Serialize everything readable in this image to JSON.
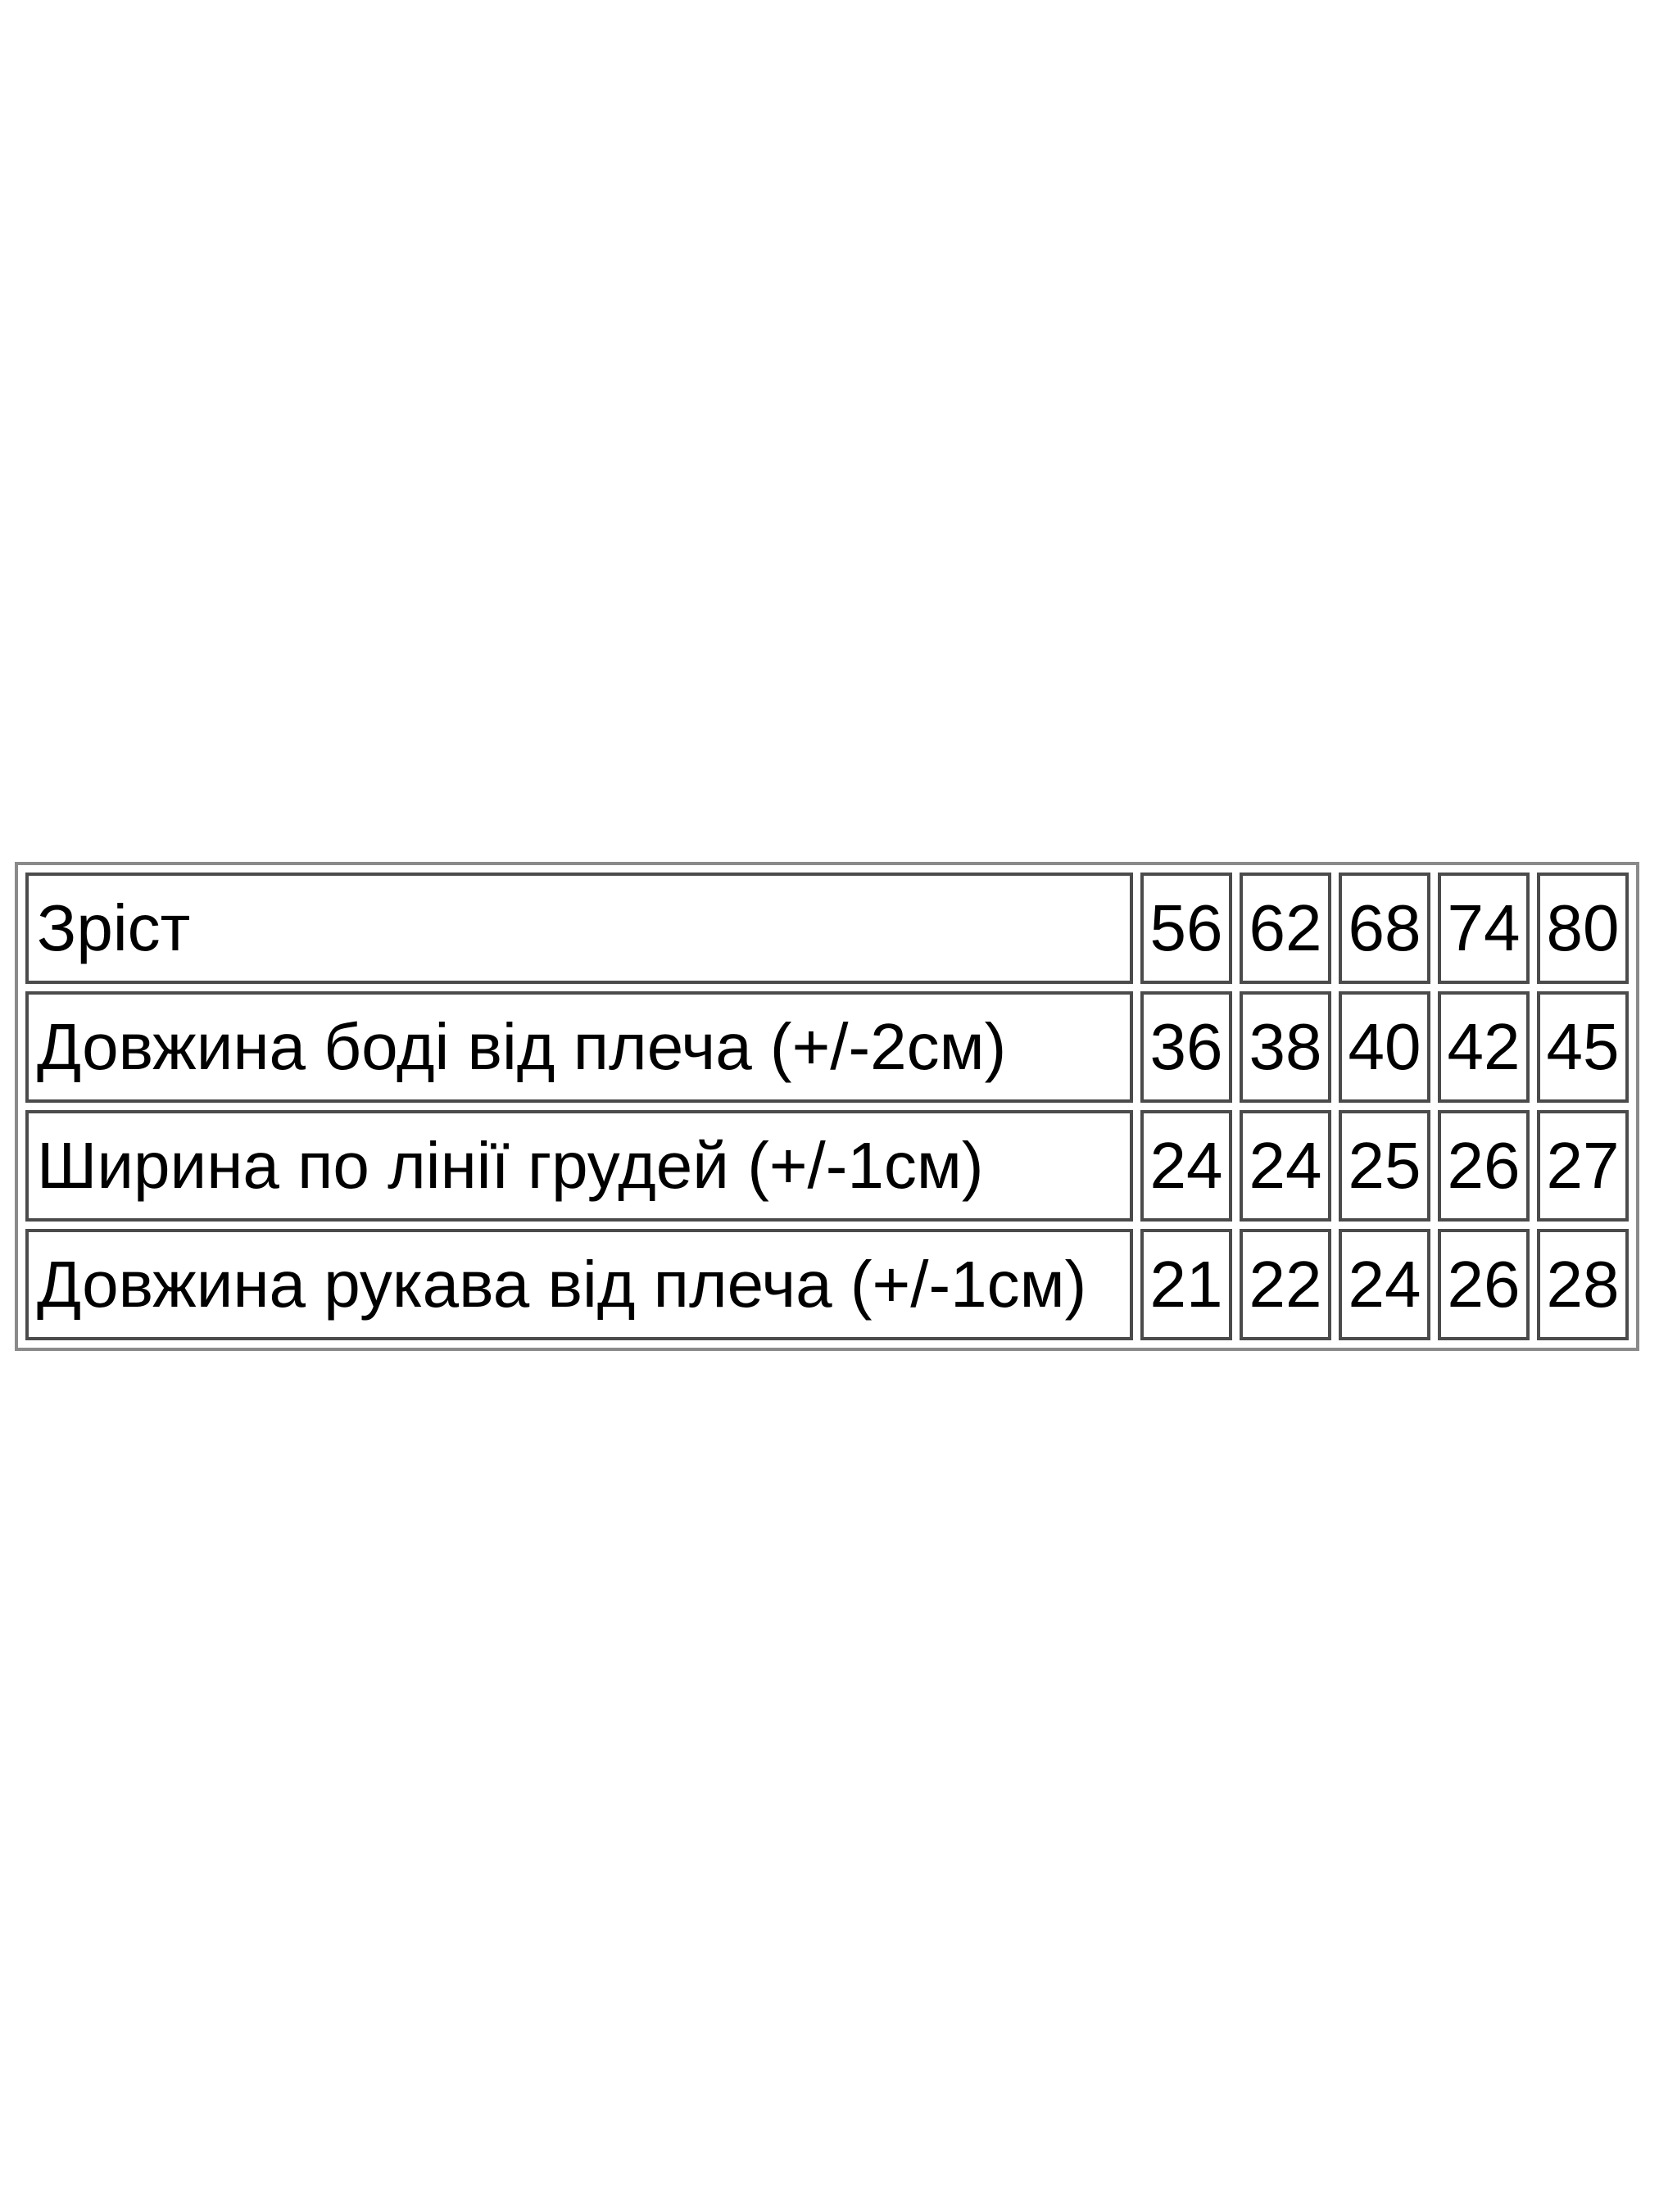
{
  "chart_data": {
    "type": "table",
    "rows": [
      {
        "label": "Зріст",
        "values": [
          "56",
          "62",
          "68",
          "74",
          "80"
        ]
      },
      {
        "label": "Довжина боді від плеча (+/-2см)",
        "values": [
          "36",
          "38",
          "40",
          "42",
          "45"
        ]
      },
      {
        "label": "Ширина по лінії грудей (+/-1см)",
        "values": [
          "24",
          "24",
          "25",
          "26",
          "27"
        ]
      },
      {
        "label": "Довжина рукава від плеча (+/-1см)",
        "values": [
          "21",
          "22",
          "24",
          "26",
          "28"
        ]
      }
    ],
    "colors": {
      "text": "#000000",
      "table_border": "#8a8a8a",
      "cell_border": "#4b4b4b",
      "background": "#ffffff"
    }
  }
}
